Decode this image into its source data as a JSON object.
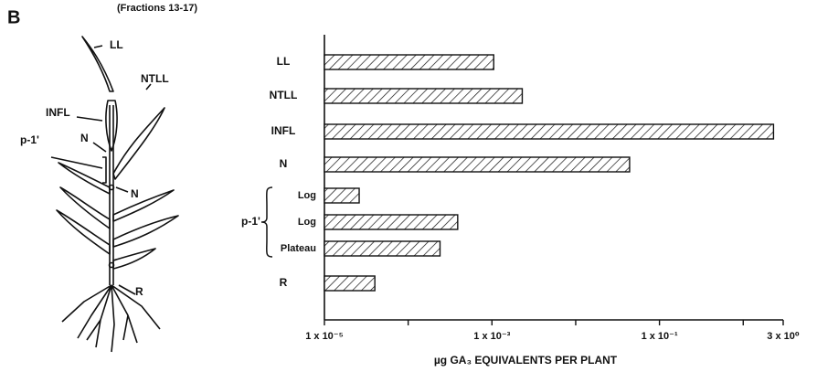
{
  "chart_data": {
    "type": "bar",
    "orientation": "horizontal",
    "panel_label": "B",
    "subtitle": "(Fractions 13-17)",
    "diagram_labels": [
      "LL",
      "NTLL",
      "INFL",
      "p-1'",
      "N",
      "N",
      "R"
    ],
    "group_label": "p-1'",
    "categories": [
      "LL",
      "NTLL",
      "INFL",
      "N",
      "Log",
      "Log",
      "Plateau",
      "R"
    ],
    "values": [
      0.00105,
      0.0023,
      2.3,
      0.044,
      2.6e-05,
      0.00039,
      0.00024,
      4e-05
    ],
    "color": "#111111",
    "hatch": true,
    "xscale": "log",
    "xlim": [
      1e-05,
      3
    ],
    "xticks": [
      {
        "value": 1e-05,
        "label": "1 x 10⁻⁵"
      },
      {
        "value": 0.001,
        "label": "1 x 10⁻³"
      },
      {
        "value": 0.1,
        "label": "1 x 10⁻¹"
      },
      {
        "value": 3,
        "label": "3 x 10⁰"
      }
    ],
    "xminor_ticks": [
      0.0001,
      0.01,
      1
    ],
    "xlabel": "µg GA₃ EQUIVALENTS PER PLANT"
  }
}
